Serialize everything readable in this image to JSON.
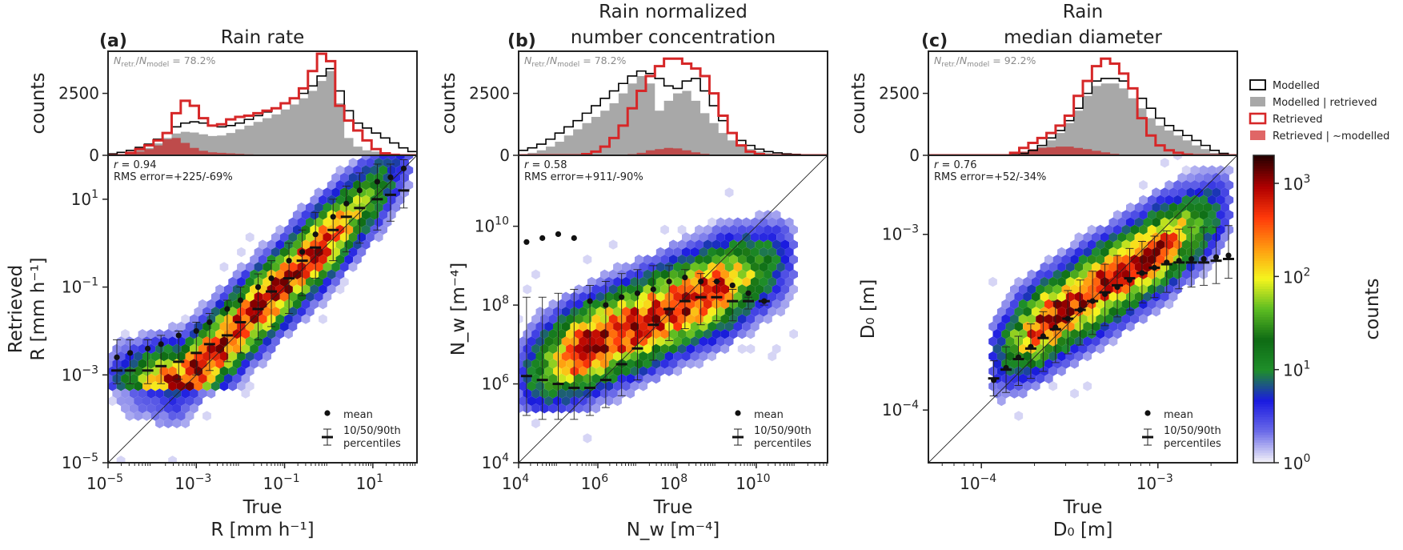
{
  "figure": {
    "legend": {
      "items": [
        {
          "label": "Modelled",
          "style": "outline-black"
        },
        {
          "label": "Modelled | retrieved",
          "style": "fill-gray"
        },
        {
          "label": "Retrieved",
          "style": "outline-red"
        },
        {
          "label": "Retrieved | ~modelled",
          "style": "fill-red"
        }
      ]
    },
    "colorbar": {
      "label": "counts",
      "scale": "log",
      "range": [
        1,
        2000
      ],
      "ticks": [
        "10",
        "10",
        "10",
        "10"
      ],
      "tick_exponents": [
        "0",
        "1",
        "2",
        "3"
      ],
      "colors": [
        "#f1f0f8",
        "#6a6ae8",
        "#1a1ae0",
        "#1f8f2a",
        "#0e6b14",
        "#5cbc22",
        "#f5f51e",
        "#ff9a10",
        "#ff3a0a",
        "#b00000",
        "#2a0000"
      ]
    },
    "colors": {
      "modelled_outline": "#000000",
      "modelled_retrieved_fill": "#a8a8a8",
      "retrieved_outline": "#d62728",
      "retrieved_not_modelled_fill": "#c23b3b"
    }
  },
  "chart_data": [
    {
      "panel": "(a)",
      "type": "scatter",
      "subtype": "hexbin-with-marginal-histogram",
      "title": "Rain rate",
      "title_line2": "",
      "xlabel": "True",
      "xlabel2": "R [mm h⁻¹]",
      "ylabel": "Retrieved",
      "ylabel2": "R [mm h⁻¹]",
      "hist_ylabel": "counts",
      "hist_tick": "2500",
      "hist_zero": "0",
      "ratio_text": "N_retr./N_model = 78.2%",
      "ratio_label": "= 78.2%",
      "stats": {
        "r": "r = 0.94",
        "rms": "RMS error=+225/-69%"
      },
      "x_scale": "log",
      "y_scale": "log",
      "xlim_log10": [
        -5,
        2.0
      ],
      "ylim_log10": [
        -5,
        2.0
      ],
      "xticks": [
        {
          "base": "10",
          "exp": "−5",
          "v": -5
        },
        {
          "base": "10",
          "exp": "−3",
          "v": -3
        },
        {
          "base": "10",
          "exp": "−1",
          "v": -1
        },
        {
          "base": "10",
          "exp": "1",
          "v": 1
        }
      ],
      "yticks": [
        {
          "base": "10",
          "exp": "−5",
          "v": -5
        },
        {
          "base": "10",
          "exp": "−3",
          "v": -3
        },
        {
          "base": "10",
          "exp": "−1",
          "v": -1
        },
        {
          "base": "10",
          "exp": "1",
          "v": 1
        }
      ],
      "marginal": {
        "ymax": 4200,
        "modelled": [
          60,
          120,
          200,
          320,
          450,
          650,
          900,
          1150,
          1300,
          1350,
          1300,
          1200,
          1150,
          1200,
          1300,
          1450,
          1600,
          1750,
          1900,
          2100,
          2300,
          2500,
          2800,
          3200,
          3500,
          2600,
          1800,
          1300,
          1100,
          900,
          700,
          500,
          300,
          150
        ],
        "modelled_retrieved": [
          0,
          40,
          100,
          200,
          300,
          480,
          700,
          880,
          950,
          920,
          850,
          780,
          800,
          900,
          1050,
          1200,
          1350,
          1500,
          1650,
          1850,
          2050,
          2300,
          2600,
          3000,
          3400,
          2100,
          700,
          350,
          200,
          150,
          100,
          60,
          30,
          10
        ],
        "retrieved": [
          0,
          0,
          100,
          250,
          400,
          600,
          900,
          1700,
          2200,
          2000,
          1500,
          1200,
          1250,
          1450,
          1550,
          1600,
          1700,
          1800,
          1900,
          2100,
          2300,
          2700,
          3400,
          4100,
          3800,
          2000,
          1400,
          1000,
          600,
          250,
          80,
          20,
          0,
          0
        ],
        "retrieved_not_modelled": [
          0,
          0,
          60,
          150,
          250,
          400,
          650,
          700,
          500,
          300,
          180,
          120,
          100,
          80,
          60,
          40,
          30,
          20,
          10,
          0,
          0,
          0,
          0,
          0,
          0,
          0,
          0,
          0,
          0,
          0,
          0,
          0,
          0,
          0
        ]
      },
      "binned": {
        "x": [
          -4.8,
          -4.5,
          -4.1,
          -3.8,
          -3.4,
          -3.0,
          -2.7,
          -2.3,
          -2.0,
          -1.6,
          -1.3,
          -0.9,
          -0.6,
          -0.3,
          0.1,
          0.4,
          0.7,
          1.1,
          1.4,
          1.7
        ],
        "mean": [
          -2.6,
          -2.5,
          -2.4,
          -2.3,
          -2.1,
          -2.0,
          -1.8,
          -1.5,
          -1.3,
          -1.0,
          -0.8,
          -0.4,
          -0.2,
          0.2,
          0.6,
          0.9,
          1.2,
          1.4,
          1.5,
          1.7
        ],
        "median": [
          -2.9,
          -2.9,
          -2.9,
          -2.8,
          -2.7,
          -2.5,
          -2.3,
          -2.1,
          -1.8,
          -1.5,
          -1.1,
          -0.8,
          -0.4,
          -0.1,
          0.3,
          0.6,
          0.8,
          1.0,
          1.1,
          1.2
        ],
        "p10": [
          -3.2,
          -3.2,
          -3.2,
          -3.2,
          -3.1,
          -3.0,
          -2.9,
          -2.7,
          -2.5,
          -2.2,
          -1.9,
          -1.6,
          -1.2,
          -0.8,
          -0.4,
          -0.2,
          0.0,
          0.3,
          0.5,
          0.8
        ],
        "p90": [
          -2.2,
          -2.2,
          -2.2,
          -2.1,
          -2.0,
          -1.8,
          -1.6,
          -1.3,
          -1.0,
          -0.7,
          -0.4,
          0.0,
          0.3,
          0.7,
          1.0,
          1.3,
          1.6,
          1.8,
          1.8,
          1.9
        ]
      },
      "cloud": {
        "center_shift": 0.1,
        "slope": 1.0,
        "x_range": [
          -5.0,
          1.9
        ],
        "spread": 0.75,
        "y_floor": -3.4
      }
    },
    {
      "panel": "(b)",
      "type": "scatter",
      "subtype": "hexbin-with-marginal-histogram",
      "title": "Rain normalized",
      "title_line2": "number concentration",
      "xlabel": "True",
      "xlabel2": "N_w [m⁻⁴]",
      "ylabel": "N_w [m⁻⁴]",
      "ylabel2": "",
      "hist_ylabel": "counts",
      "hist_tick": "2500",
      "hist_zero": "0",
      "ratio_text": "N_retr./N_model = 78.2%",
      "ratio_label": "= 78.2%",
      "stats": {
        "r": "r = 0.58",
        "rms": "RMS error=+911/-90%"
      },
      "x_scale": "log",
      "y_scale": "log",
      "xlim_log10": [
        4,
        11.8
      ],
      "ylim_log10": [
        4,
        11.8
      ],
      "xticks": [
        {
          "base": "10",
          "exp": "4",
          "v": 4
        },
        {
          "base": "10",
          "exp": "6",
          "v": 6
        },
        {
          "base": "10",
          "exp": "8",
          "v": 8
        },
        {
          "base": "10",
          "exp": "10",
          "v": 10
        }
      ],
      "yticks": [
        {
          "base": "10",
          "exp": "4",
          "v": 4
        },
        {
          "base": "10",
          "exp": "6",
          "v": 6
        },
        {
          "base": "10",
          "exp": "8",
          "v": 8
        },
        {
          "base": "10",
          "exp": "10",
          "v": 10
        }
      ],
      "marginal": {
        "ymax": 4200,
        "modelled": [
          200,
          300,
          450,
          650,
          900,
          1150,
          1400,
          1700,
          2000,
          2300,
          2600,
          2900,
          3200,
          3400,
          3300,
          3100,
          2800,
          2700,
          3000,
          3100,
          2600,
          2000,
          1400,
          900,
          600,
          400,
          250,
          150,
          100,
          60,
          40,
          20,
          10,
          0
        ],
        "modelled_retrieved": [
          50,
          100,
          200,
          350,
          550,
          800,
          1050,
          1300,
          1550,
          1800,
          2100,
          2500,
          2900,
          3200,
          2900,
          1800,
          2200,
          2500,
          2600,
          2200,
          1700,
          1300,
          900,
          600,
          400,
          250,
          150,
          80,
          40,
          20,
          10,
          0,
          0,
          0
        ],
        "retrieved": [
          0,
          0,
          0,
          0,
          0,
          0,
          0,
          50,
          150,
          350,
          700,
          1200,
          1900,
          2600,
          3200,
          3600,
          3900,
          3900,
          3700,
          3500,
          3200,
          2500,
          1600,
          900,
          400,
          150,
          50,
          0,
          0,
          0,
          0,
          0,
          0,
          0
        ],
        "retrieved_not_modelled": [
          0,
          0,
          0,
          0,
          0,
          0,
          0,
          0,
          0,
          0,
          0,
          0,
          50,
          100,
          200,
          250,
          300,
          280,
          200,
          120,
          60,
          30,
          0,
          0,
          0,
          0,
          0,
          0,
          0,
          0,
          0,
          0,
          0,
          0
        ]
      },
      "binned": {
        "x": [
          4.2,
          4.6,
          5.0,
          5.4,
          5.8,
          6.2,
          6.6,
          7.0,
          7.4,
          7.8,
          8.2,
          8.6,
          9.0,
          9.4,
          9.8,
          10.2
        ],
        "mean": [
          9.6,
          9.7,
          9.8,
          9.7,
          8.1,
          8.0,
          8.2,
          8.3,
          8.4,
          8.6,
          8.7,
          8.6,
          8.6,
          8.5,
          8.3,
          8.1
        ],
        "median": [
          6.2,
          6.1,
          6.0,
          5.9,
          5.9,
          6.1,
          6.5,
          6.9,
          7.5,
          7.9,
          8.1,
          8.2,
          8.2,
          8.1,
          8.1,
          8.1
        ],
        "p10": [
          5.2,
          5.1,
          5.1,
          5.1,
          5.2,
          5.4,
          5.7,
          6.1,
          6.6,
          7.1,
          7.4,
          7.5,
          7.6,
          7.6,
          7.9,
          8.0
        ],
        "p90": [
          8.2,
          8.2,
          8.3,
          8.4,
          8.5,
          8.6,
          8.8,
          8.9,
          9.0,
          9.0,
          8.9,
          8.8,
          8.6,
          8.4,
          8.2,
          8.1
        ]
      },
      "cloud": {
        "center_shift": 0.0,
        "slope": 0.45,
        "x_range": [
          4.0,
          11.0
        ],
        "spread": 0.95,
        "y_floor": 5.3,
        "pivot": 7.9
      }
    },
    {
      "panel": "(c)",
      "type": "scatter",
      "subtype": "hexbin-with-marginal-histogram",
      "title": "Rain",
      "title_line2": "median diameter",
      "xlabel": "True",
      "xlabel2": "D₀ [m]",
      "ylabel": "D₀ [m]",
      "ylabel2": "",
      "hist_ylabel": "counts",
      "hist_tick": "2500",
      "hist_zero": "0",
      "ratio_text": "N_retr./N_model = 92.2%",
      "ratio_label": "= 92.2%",
      "stats": {
        "r": "r = 0.76",
        "rms": "RMS error=+52/-34%"
      },
      "x_scale": "log",
      "y_scale": "log",
      "xlim_log10": [
        -4.3,
        -2.55
      ],
      "ylim_log10": [
        -4.3,
        -2.55
      ],
      "xticks": [
        {
          "base": "10",
          "exp": "−4",
          "v": -4
        },
        {
          "base": "10",
          "exp": "−3",
          "v": -3
        }
      ],
      "yticks": [
        {
          "base": "10",
          "exp": "−4",
          "v": -4
        },
        {
          "base": "10",
          "exp": "−3",
          "v": -3
        }
      ],
      "marginal": {
        "ymax": 4200,
        "modelled": [
          0,
          0,
          0,
          0,
          0,
          0,
          0,
          0,
          0,
          20,
          80,
          200,
          400,
          700,
          1000,
          1400,
          1900,
          2500,
          3000,
          3100,
          3100,
          3000,
          2700,
          2300,
          1900,
          1500,
          1200,
          1000,
          800,
          600,
          400,
          200,
          80,
          0
        ],
        "modelled_retrieved": [
          0,
          0,
          0,
          0,
          0,
          0,
          0,
          0,
          0,
          20,
          70,
          180,
          350,
          600,
          900,
          1300,
          1800,
          2400,
          2800,
          2900,
          2900,
          2700,
          2300,
          1900,
          1500,
          1200,
          1000,
          800,
          600,
          400,
          250,
          100,
          30,
          0
        ],
        "retrieved": [
          0,
          0,
          0,
          0,
          0,
          0,
          0,
          0,
          0,
          100,
          300,
          500,
          700,
          900,
          1200,
          1600,
          2400,
          3000,
          3600,
          3900,
          3700,
          3300,
          2700,
          1500,
          800,
          400,
          200,
          100,
          30,
          0,
          0,
          0,
          0,
          0
        ],
        "retrieved_not_modelled": [
          0,
          0,
          0,
          0,
          0,
          0,
          0,
          0,
          0,
          50,
          150,
          250,
          300,
          320,
          350,
          350,
          300,
          250,
          180,
          120,
          60,
          30,
          0,
          0,
          0,
          0,
          0,
          0,
          0,
          0,
          0,
          0,
          0,
          0
        ]
      },
      "binned": {
        "x": [
          -3.93,
          -3.86,
          -3.79,
          -3.72,
          -3.65,
          -3.58,
          -3.51,
          -3.44,
          -3.37,
          -3.3,
          -3.23,
          -3.16,
          -3.09,
          -3.02,
          -2.95,
          -2.88,
          -2.81,
          -2.74,
          -2.67,
          -2.6
        ],
        "mean": [
          -3.83,
          -3.76,
          -3.7,
          -3.64,
          -3.58,
          -3.53,
          -3.48,
          -3.43,
          -3.38,
          -3.34,
          -3.3,
          -3.26,
          -3.22,
          -3.19,
          -3.16,
          -3.15,
          -3.14,
          -3.14,
          -3.13,
          -3.12
        ],
        "median": [
          -3.82,
          -3.77,
          -3.71,
          -3.65,
          -3.59,
          -3.54,
          -3.48,
          -3.43,
          -3.38,
          -3.33,
          -3.29,
          -3.25,
          -3.22,
          -3.19,
          -3.17,
          -3.16,
          -3.16,
          -3.16,
          -3.15,
          -3.14
        ],
        "p10": [
          -3.92,
          -3.9,
          -3.86,
          -3.82,
          -3.78,
          -3.73,
          -3.68,
          -3.63,
          -3.57,
          -3.52,
          -3.47,
          -3.43,
          -3.39,
          -3.36,
          -3.33,
          -3.31,
          -3.3,
          -3.29,
          -3.28,
          -3.25
        ],
        "p90": [
          -3.72,
          -3.64,
          -3.58,
          -3.51,
          -3.44,
          -3.38,
          -3.32,
          -3.26,
          -3.21,
          -3.17,
          -3.12,
          -3.08,
          -3.04,
          -3.01,
          -2.98,
          -2.97,
          -2.96,
          -2.96,
          -2.96,
          -2.95
        ]
      },
      "cloud": {
        "center_shift": 0.05,
        "slope": 0.65,
        "x_range": [
          -3.95,
          -2.58
        ],
        "spread": 0.2,
        "y_floor": -4.2,
        "pivot": -3.4
      }
    }
  ],
  "legend_scatter": {
    "mean": "mean",
    "pct_line1": "10/50/90th",
    "pct_line2": "percentiles"
  }
}
